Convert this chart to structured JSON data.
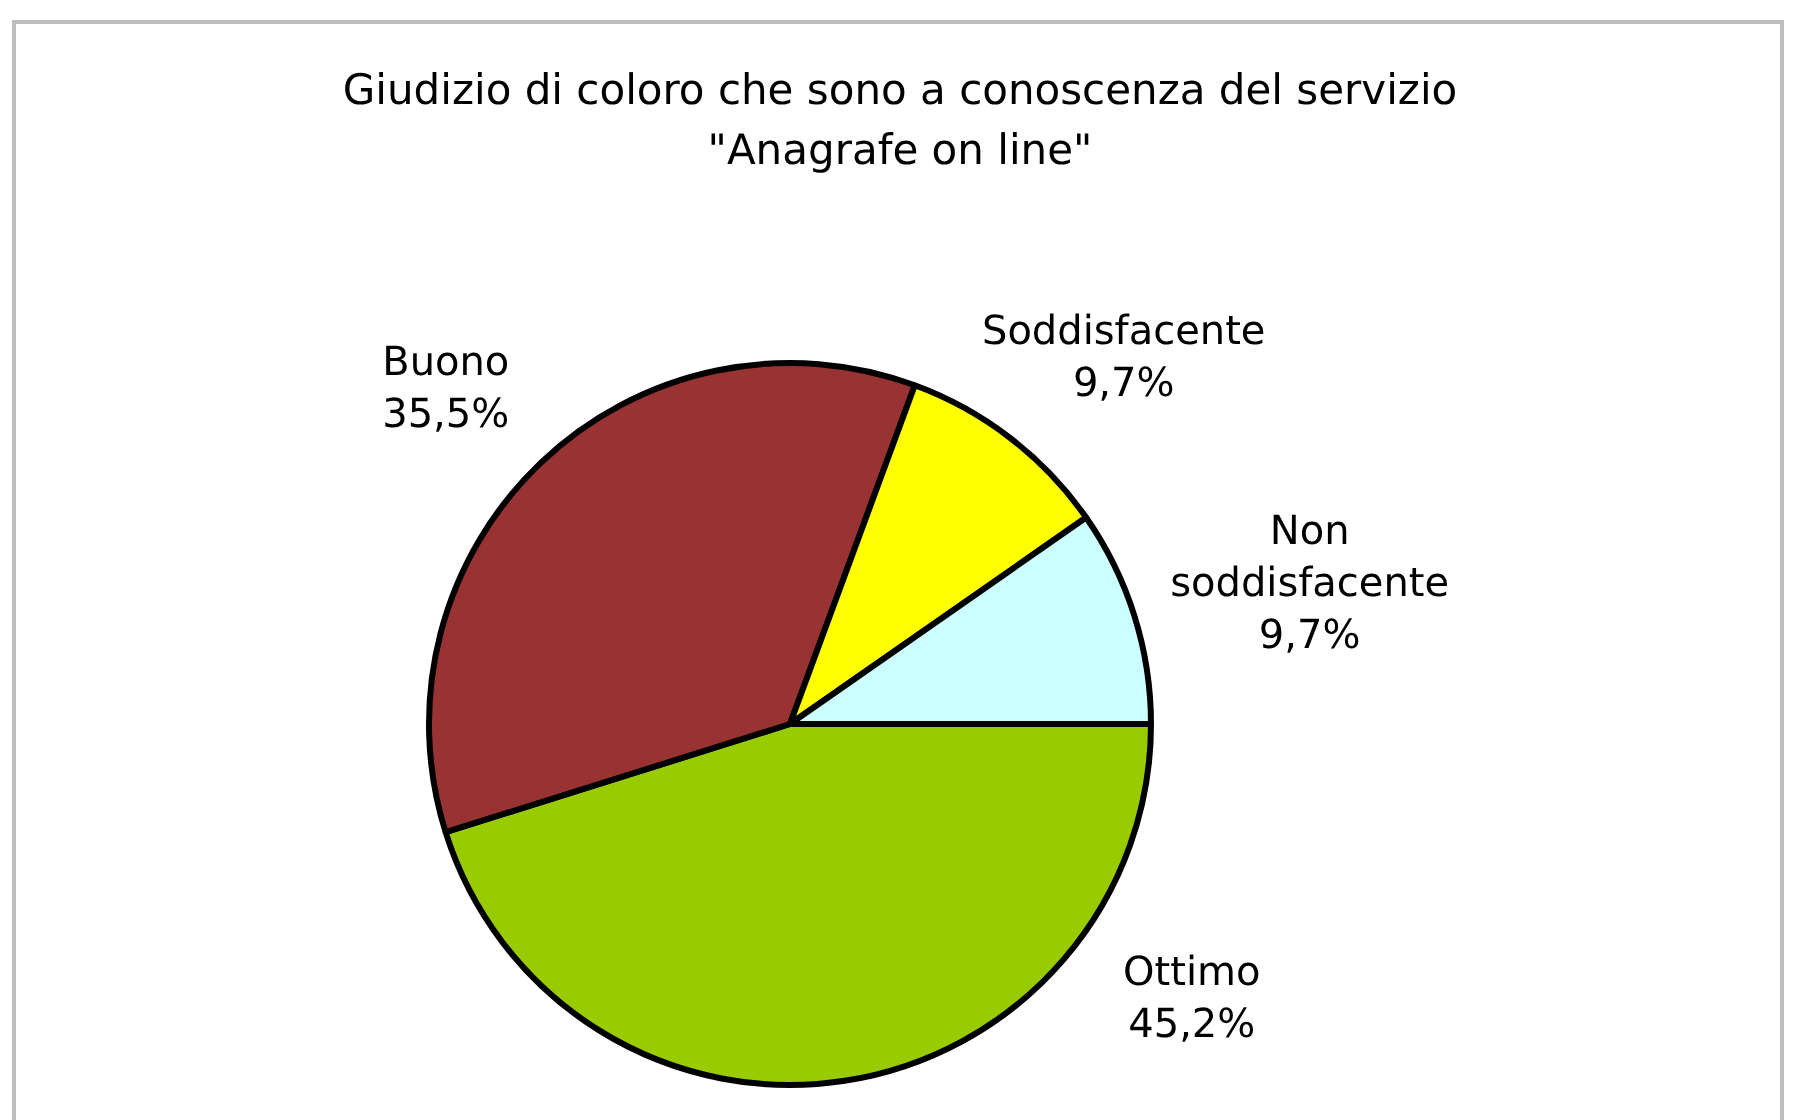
{
  "chart_data": {
    "type": "pie",
    "title": "Giudizio di coloro che sono a conoscenza del servizio \"Anagrafe on line\"",
    "categories": [
      "Ottimo",
      "Buono",
      "Soddisfacente",
      "Non soddisfacente"
    ],
    "values": [
      45.2,
      35.5,
      9.7,
      9.7
    ],
    "value_labels": [
      "45,2%",
      "35,5%",
      "9,7%",
      "9,7%"
    ],
    "colors": [
      "#99cc00",
      "#993333",
      "#ffff00",
      "#ccffff"
    ],
    "legend": false
  }
}
